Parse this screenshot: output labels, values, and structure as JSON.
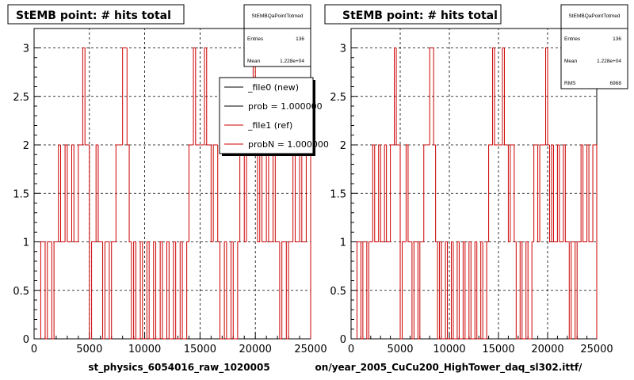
{
  "panels": [
    {
      "title": "StEMB point: # hits total",
      "footer": "st_physics_6054016_raw_1020005",
      "stats": {
        "name": "StEMBQaPointTotmed",
        "rows": [
          {
            "label": "Entries",
            "value": "136"
          },
          {
            "label": "Mean",
            "value": "1.228e+04"
          }
        ]
      },
      "legend": [
        {
          "label": "_file0 (new)",
          "color": "#000000"
        },
        {
          "label": "prob = 1.000000",
          "color": "#000000"
        },
        {
          "label": "_file1 (ref)",
          "color": "#cc0000"
        },
        {
          "label": "probN = 1.000000",
          "color": "#cc0000"
        }
      ]
    },
    {
      "title": "StEMB point: # hits total",
      "footer": "on/year_2005_CuCu200_HighTower_daq_sl302.ittf/",
      "stats": {
        "name": "StEMBQaPointTotmed",
        "rows": [
          {
            "label": "Entries",
            "value": "136"
          },
          {
            "label": "Mean",
            "value": "1.228e+04"
          },
          {
            "label": "RMS",
            "value": "6968"
          }
        ]
      },
      "legend": []
    }
  ],
  "colors": {
    "hist_line": "#cc0000",
    "axis": "#000000",
    "grid": "#000000"
  },
  "chart_data": [
    {
      "type": "bar",
      "histogram": true,
      "title": "StEMB point: # hits total",
      "xlabel": "",
      "ylabel": "",
      "xlim": [
        0,
        25000
      ],
      "ylim": [
        0,
        3.2
      ],
      "xticks": [
        "0",
        "5000",
        "10000",
        "15000",
        "20000",
        "25000"
      ],
      "yticks": [
        "0",
        "0.5",
        "1",
        "1.5",
        "2",
        "2.5",
        "3"
      ],
      "grid": true,
      "legend_position": "top-right",
      "bin_edges": [
        600,
        1000,
        1200,
        1600,
        1800,
        2200,
        2400,
        2800,
        3000,
        3400,
        3600,
        4000,
        4200,
        4400,
        4600,
        5000,
        5200,
        5600,
        5800,
        6200,
        6400,
        6800,
        7000,
        7400,
        7600,
        7800,
        8000,
        8400,
        8600,
        8800,
        9000,
        9200,
        9600,
        9800,
        10200,
        10400,
        10800,
        11000,
        11400,
        11600,
        12000,
        12200,
        12600,
        12800,
        13200,
        13400,
        13800,
        14000,
        14200,
        14400,
        14600,
        15000,
        15200,
        15400,
        15600,
        16000,
        16200,
        16600,
        16800,
        17200,
        17400,
        17800,
        18000,
        18400,
        18600,
        19000,
        19200,
        19600,
        19800,
        20000,
        20200,
        20400,
        20600,
        21000,
        21200,
        21600,
        21800,
        22200,
        22400,
        22800,
        23000,
        23400,
        23600,
        24000,
        24200,
        24600,
        24800,
        25000
      ],
      "values": [
        1,
        0,
        1,
        0,
        1,
        2,
        1,
        2,
        1,
        2,
        1,
        2,
        2,
        3,
        2,
        0,
        1,
        2,
        1,
        0,
        1,
        0,
        1,
        2,
        2,
        2,
        3,
        2,
        1,
        0,
        1,
        0,
        1,
        0,
        1,
        0,
        1,
        0,
        1,
        0,
        1,
        0,
        1,
        0,
        1,
        0,
        1,
        2,
        2,
        3,
        2,
        2,
        2,
        3,
        2,
        1,
        2,
        1,
        0,
        1,
        0,
        1,
        0,
        1,
        2,
        1,
        2,
        2,
        3,
        2,
        1,
        2,
        1,
        2,
        1,
        2,
        1,
        0,
        1,
        0,
        1,
        2,
        1,
        2,
        1,
        2,
        2
      ],
      "series": [
        {
          "name": "_file0 (new)",
          "color": "#000000"
        },
        {
          "name": "_file1 (ref)",
          "color": "#cc0000"
        }
      ]
    },
    {
      "type": "bar",
      "histogram": true,
      "title": "StEMB point: # hits total",
      "xlabel": "",
      "ylabel": "",
      "xlim": [
        0,
        25000
      ],
      "ylim": [
        0,
        3.2
      ],
      "xticks": [
        "0",
        "5000",
        "10000",
        "15000",
        "20000",
        "25000"
      ],
      "yticks": [
        "0",
        "0.5",
        "1",
        "1.5",
        "2",
        "2.5",
        "3"
      ],
      "grid": true,
      "bin_edges": [
        600,
        1000,
        1200,
        1600,
        1800,
        2200,
        2400,
        2800,
        3000,
        3400,
        3600,
        4000,
        4200,
        4400,
        4600,
        5000,
        5200,
        5600,
        5800,
        6200,
        6400,
        6800,
        7000,
        7400,
        7600,
        7800,
        8000,
        8400,
        8600,
        8800,
        9000,
        9200,
        9600,
        9800,
        10200,
        10400,
        10800,
        11000,
        11400,
        11600,
        12000,
        12200,
        12600,
        12800,
        13200,
        13400,
        13800,
        14000,
        14200,
        14400,
        14600,
        15000,
        15200,
        15400,
        15600,
        16000,
        16200,
        16600,
        16800,
        17200,
        17400,
        17800,
        18000,
        18400,
        18600,
        19000,
        19200,
        19600,
        19800,
        20000,
        20200,
        20400,
        20600,
        21000,
        21200,
        21600,
        21800,
        22200,
        22400,
        22800,
        23000,
        23400,
        23600,
        24000,
        24200,
        24600,
        24800,
        25000
      ],
      "values": [
        1,
        0,
        1,
        0,
        1,
        2,
        1,
        2,
        1,
        2,
        1,
        2,
        2,
        3,
        2,
        0,
        1,
        2,
        1,
        0,
        1,
        0,
        1,
        2,
        2,
        2,
        3,
        2,
        1,
        0,
        1,
        0,
        1,
        0,
        1,
        0,
        1,
        0,
        1,
        0,
        1,
        0,
        1,
        0,
        1,
        0,
        1,
        2,
        2,
        3,
        2,
        2,
        2,
        3,
        2,
        1,
        2,
        1,
        0,
        1,
        0,
        1,
        0,
        1,
        2,
        1,
        2,
        2,
        3,
        2,
        1,
        2,
        1,
        2,
        1,
        2,
        1,
        0,
        1,
        0,
        1,
        2,
        1,
        2,
        1,
        2,
        2
      ]
    }
  ]
}
